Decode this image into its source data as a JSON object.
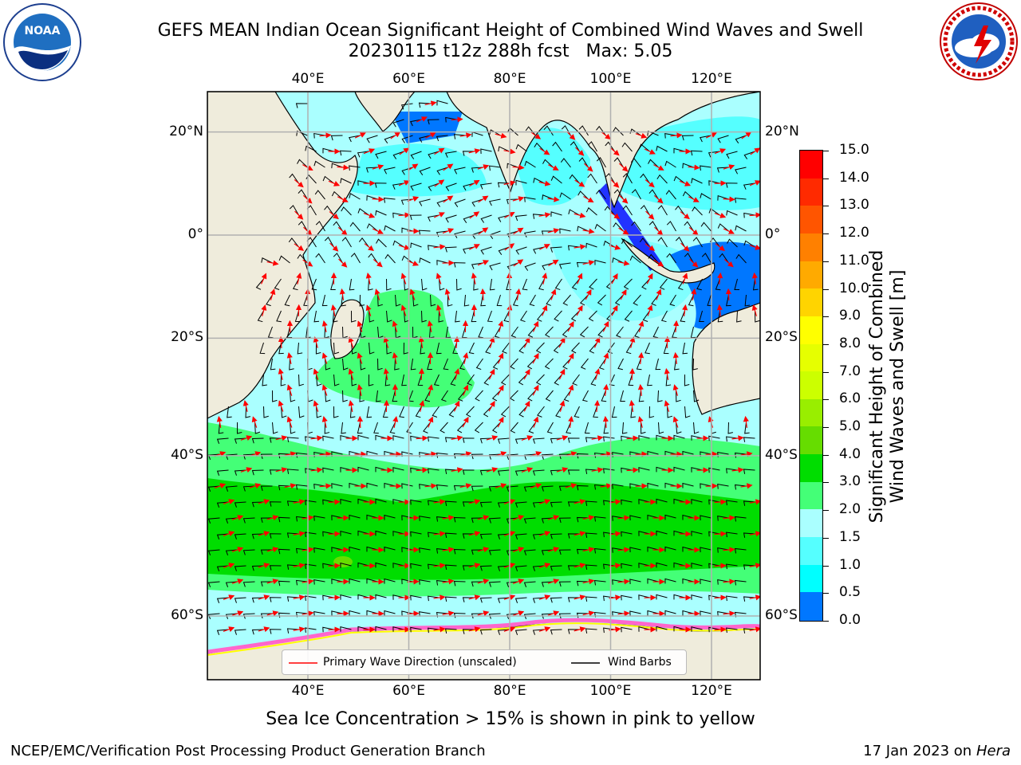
{
  "title": {
    "line1": "GEFS MEAN Indian Ocean Significant Height of Combined Wind Waves and Swell",
    "line2": "20230115 t12z 288h fcst   Max: 5.05"
  },
  "logos": {
    "noaa": {
      "text": "NOAA",
      "ring_text": "NATIONAL OCEANIC AND ATMOSPHERIC ADMINISTRATION · U.S. DEPARTMENT OF COMMERCE"
    },
    "nws": {
      "ring_text": "NATIONAL WEATHER SERVICE"
    }
  },
  "map": {
    "lon_labels": [
      "40°E",
      "60°E",
      "80°E",
      "100°E",
      "120°E"
    ],
    "lon_values": [
      40,
      60,
      80,
      100,
      120
    ],
    "lat_labels_left": [
      "20°N",
      "0°",
      "20°S",
      "40°S",
      "60°S"
    ],
    "lat_labels_right": [
      "20°N",
      "0°",
      "20°S",
      "40°S",
      "60°S"
    ],
    "lat_values": [
      20,
      0,
      -20,
      -40,
      -60
    ],
    "colors": {
      "land": "#efecdc",
      "grid": "#b0b0b0",
      "wave_arrow": "#ff0000",
      "wind_barb": "#000000",
      "sea_ice": [
        "#ff66cc",
        "#ffff00"
      ]
    }
  },
  "colorbar": {
    "label_line1": "Significant Height of Combined",
    "label_line2": "Wind Waves and Swell [m]",
    "ticks": [
      "15.0",
      "14.0",
      "13.0",
      "12.0",
      "11.0",
      "10.0",
      "9.0",
      "8.0",
      "7.0",
      "6.0",
      "5.0",
      "4.0",
      "3.0",
      "2.0",
      "1.5",
      "1.0",
      "0.5",
      "0.0"
    ],
    "colors": [
      "#ff0000",
      "#ff2a00",
      "#ff5500",
      "#ff8000",
      "#ffaa00",
      "#ffd400",
      "#ffff00",
      "#e6ff00",
      "#ccff00",
      "#99ee00",
      "#66dd00",
      "#00dd00",
      "#44ff77",
      "#aaffff",
      "#55ffff",
      "#00ffff",
      "#0077ff",
      "#0000ff"
    ]
  },
  "legend": {
    "wave_label": "Primary Wave Direction (unscaled)",
    "barb_label": "Wind Barbs"
  },
  "ice_note": "Sea Ice Concentration > 15% is shown in pink to yellow",
  "footer": {
    "left": "NCEP/EMC/Verification Post Processing Product Generation Branch",
    "right_prefix": "17 Jan 2023 on ",
    "right_italic": "Hera"
  }
}
